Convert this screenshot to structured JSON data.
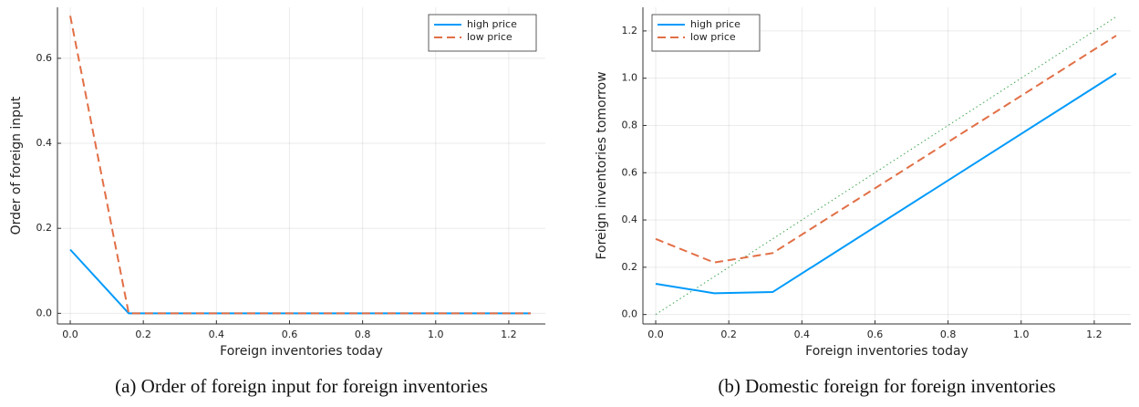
{
  "chart_data": [
    {
      "type": "line",
      "caption": "(a) Order of foreign input for foreign inventories",
      "xlabel": "Foreign inventories today",
      "ylabel": "Order of foreign input",
      "x": [
        0,
        0.16,
        0.32,
        0.48,
        0.64,
        0.8,
        0.96,
        1.12,
        1.26
      ],
      "series": [
        {
          "name": "high price",
          "color": "#009afa",
          "dash": "solid",
          "values": [
            0.15,
            0,
            0,
            0,
            0,
            0,
            0,
            0,
            0
          ]
        },
        {
          "name": "low price",
          "color": "#e26f46",
          "dash": "dashed",
          "values": [
            0.7,
            0,
            0,
            0,
            0,
            0,
            0,
            0,
            0
          ]
        }
      ],
      "xlim": [
        -0.035,
        1.3
      ],
      "ylim": [
        -0.025,
        0.72
      ],
      "xticks": [
        {
          "value": 0,
          "label": "0.0"
        },
        0.2,
        0.4,
        0.6,
        0.8,
        {
          "value": 1,
          "label": "1.0"
        },
        1.2
      ],
      "yticks": [
        {
          "value": 0,
          "label": "0.0"
        },
        0.2,
        0.4,
        0.6
      ],
      "grid": true,
      "legend": "upper right"
    },
    {
      "type": "line",
      "caption": "(b) Domestic foreign for foreign inventories",
      "xlabel": "Foreign inventories today",
      "ylabel": "Foreign inventories tomorrow",
      "x": [
        0,
        0.16,
        0.32,
        1.26
      ],
      "series": [
        {
          "name": "high price",
          "color": "#009afa",
          "dash": "solid",
          "values": [
            0.13,
            0.09,
            0.095,
            1.02
          ]
        },
        {
          "name": "low price",
          "color": "#e26f46",
          "dash": "dashed",
          "values": [
            0.32,
            0.22,
            0.26,
            1.18
          ]
        }
      ],
      "reference_line": {
        "color": "#3da44d",
        "dash": "dotted",
        "x": [
          0,
          1.26
        ],
        "values": [
          0,
          1.26
        ]
      },
      "xlim": [
        -0.035,
        1.3
      ],
      "ylim": [
        -0.04,
        1.3
      ],
      "xticks": [
        {
          "value": 0,
          "label": "0.0"
        },
        0.2,
        0.4,
        0.6,
        0.8,
        {
          "value": 1,
          "label": "1.0"
        },
        1.2
      ],
      "yticks": [
        {
          "value": 0,
          "label": "0.0"
        },
        0.2,
        0.4,
        0.6,
        0.8,
        {
          "value": 1,
          "label": "1.0"
        },
        1.2
      ],
      "grid": true,
      "legend": "upper left"
    }
  ]
}
